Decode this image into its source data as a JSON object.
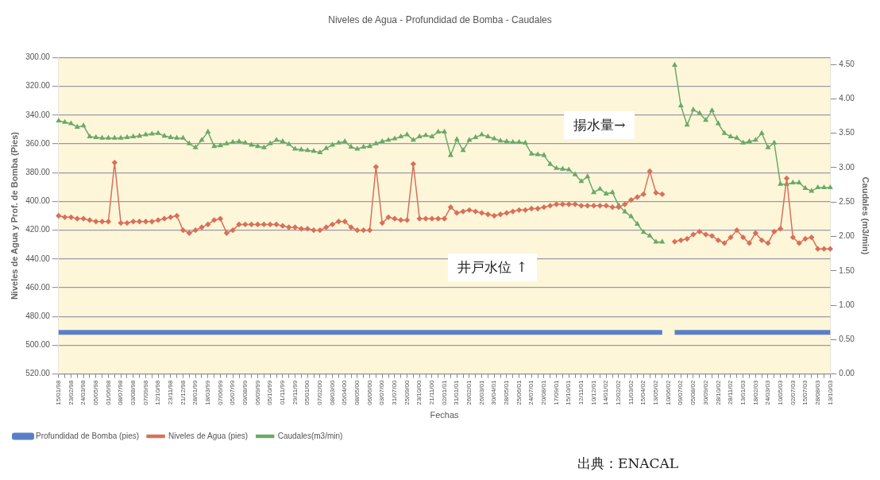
{
  "chart_data": {
    "type": "line",
    "title": "Niveles de Agua - Profundidad de Bomba - Caudales",
    "xlabel": "Fechas",
    "ylabel": "Niveles de Agua y Prof. de Bomba (Pies)",
    "y2label": "Caudales (m3/min)",
    "annotations": [
      "揚水量→",
      "井戸水位 ↑",
      "出典：ENACAL"
    ],
    "categories": [
      "15/01/98",
      null,
      "23/02/98",
      null,
      "24/03/98",
      null,
      "05/05/98",
      null,
      "01/06/98",
      null,
      "08/07/98",
      null,
      "03/08/98",
      null,
      "07/09/98",
      null,
      "12/10/98",
      null,
      "23/11/98",
      null,
      "21/12/98",
      null,
      "28/01/99",
      null,
      "18/03/99",
      null,
      "07/06/99",
      null,
      "05/07/99",
      null,
      "09/08/99",
      null,
      "06/09/99",
      null,
      "05/10/99",
      null,
      "01/11/99",
      null,
      "29/11/99",
      null,
      "05/01/00",
      null,
      "07/02/00",
      null,
      "08/03/00",
      null,
      "05/04/00",
      null,
      "08/05/00",
      null,
      "06/06/00",
      null,
      "03/07/00",
      null,
      "31/07/00",
      null,
      "25/09/00",
      null,
      "23/10/00",
      null,
      "21/11/00",
      null,
      "02/01/01",
      null,
      "31/01/01",
      null,
      "26/02/01",
      null,
      "26/03/01",
      null,
      "30/04/01",
      null,
      "28/05/01",
      null,
      "25/06/01",
      null,
      "24/07/01",
      null,
      "20/08/01",
      null,
      "17/09/01",
      null,
      "15/10/01",
      null,
      "12/11/01",
      null,
      "10/12/01",
      null,
      "14/01/02",
      null,
      "12/02/02",
      null,
      "11/03/02",
      null,
      "15/04/02",
      null,
      "13/05/02",
      null,
      "10/06/02",
      null,
      "09/07/02",
      null,
      "05/08/02",
      null,
      "30/09/02",
      null,
      "28/10/02",
      null,
      "28/11/02",
      null,
      "13/01/03",
      null,
      "18/02/03",
      null,
      "24/03/03",
      null,
      "10/05/03",
      null,
      "02/07/03",
      null,
      "15/07/03",
      null,
      "28/08/03",
      null,
      "13/10/03"
    ],
    "series": [
      {
        "name": "Profundidad de Bomba (pies)",
        "color": "#5b7fc7",
        "marker": "none",
        "values": [
          491,
          491,
          491,
          491,
          491,
          491,
          491,
          491,
          491,
          491,
          491,
          491,
          491,
          491,
          491,
          491,
          491,
          491,
          491,
          491,
          491,
          491,
          491,
          491,
          491,
          491,
          491,
          491,
          491,
          491,
          491,
          491,
          491,
          491,
          491,
          491,
          491,
          491,
          491,
          491,
          491,
          491,
          491,
          491,
          491,
          491,
          491,
          491,
          491,
          491,
          491,
          491,
          491,
          491,
          491,
          491,
          491,
          491,
          491,
          491,
          491,
          491,
          491,
          491,
          491,
          491,
          491,
          491,
          491,
          491,
          491,
          491,
          491,
          491,
          491,
          491,
          491,
          491,
          491,
          491,
          491,
          491,
          491,
          491,
          491,
          491,
          491,
          491,
          491,
          491,
          491,
          491,
          491,
          491,
          491,
          491,
          491,
          491,
          null,
          491,
          491,
          491,
          491,
          491,
          491,
          491,
          491,
          491,
          491,
          491,
          491,
          491,
          491,
          491,
          491,
          491,
          491,
          491,
          491,
          491,
          491,
          491,
          491,
          491,
          491
        ]
      },
      {
        "name": "Niveles de Agua (pies)",
        "color": "#d9705a",
        "marker": "diamond",
        "values": [
          410,
          411,
          411,
          412,
          412,
          413,
          414,
          414,
          414,
          373,
          415,
          415,
          414,
          414,
          414,
          414,
          413,
          412,
          411,
          410,
          420,
          422,
          420,
          418,
          416,
          413,
          412,
          422,
          420,
          416,
          416,
          416,
          416,
          416,
          416,
          416,
          417,
          418,
          418,
          419,
          419,
          420,
          420,
          418,
          416,
          414,
          414,
          418,
          420,
          420,
          420,
          376,
          415,
          411,
          412,
          413,
          413,
          374,
          412,
          412,
          412,
          412,
          412,
          404,
          408,
          407,
          406,
          407,
          408,
          409,
          410,
          409,
          408,
          407,
          406,
          406,
          405,
          405,
          404,
          403,
          402,
          402,
          402,
          402,
          403,
          403,
          403,
          403,
          403,
          404,
          404,
          402,
          399,
          397,
          395,
          379,
          394,
          395,
          null,
          428,
          427,
          426,
          423,
          421,
          423,
          424,
          427,
          429,
          425,
          420,
          425,
          429,
          422,
          427,
          429,
          421,
          419,
          384,
          425,
          429,
          426,
          425,
          433,
          433,
          433
        ]
      },
      {
        "name": "Caudales(m3/min)",
        "color": "#6aaa6a",
        "marker": "triangle",
        "axis": "y2",
        "values": [
          3.68,
          3.66,
          3.64,
          3.59,
          3.61,
          3.45,
          3.44,
          3.43,
          3.43,
          3.43,
          3.43,
          3.44,
          3.45,
          3.46,
          3.48,
          3.49,
          3.5,
          3.46,
          3.44,
          3.43,
          3.43,
          3.35,
          3.29,
          3.4,
          3.52,
          3.31,
          3.32,
          3.35,
          3.37,
          3.38,
          3.36,
          3.33,
          3.31,
          3.29,
          3.35,
          3.4,
          3.38,
          3.34,
          3.27,
          3.26,
          3.25,
          3.24,
          3.22,
          3.28,
          3.33,
          3.36,
          3.38,
          3.3,
          3.27,
          3.3,
          3.31,
          3.35,
          3.38,
          3.4,
          3.42,
          3.45,
          3.48,
          3.4,
          3.45,
          3.47,
          3.45,
          3.52,
          3.52,
          3.18,
          3.41,
          3.25,
          3.4,
          3.44,
          3.48,
          3.45,
          3.42,
          3.39,
          3.38,
          3.37,
          3.37,
          3.36,
          3.2,
          3.19,
          3.18,
          3.05,
          2.99,
          2.98,
          2.97,
          2.9,
          2.8,
          2.87,
          2.64,
          2.69,
          2.62,
          2.64,
          2.45,
          2.36,
          2.29,
          2.18,
          2.06,
          2.01,
          1.92,
          1.92,
          null,
          4.49,
          3.9,
          3.62,
          3.84,
          3.79,
          3.69,
          3.83,
          3.64,
          3.5,
          3.45,
          3.43,
          3.36,
          3.38,
          3.4,
          3.5,
          3.29,
          3.36,
          2.76,
          2.76,
          2.78,
          2.78,
          2.7,
          2.66,
          2.71,
          2.71,
          2.71
        ]
      }
    ],
    "ylim": [
      520,
      300
    ],
    "yticks": [
      {
        "value": 300,
        "label": "300.00"
      },
      {
        "value": 320,
        "label": "320.00"
      },
      {
        "value": 340,
        "label": "340.00"
      },
      {
        "value": 360,
        "label": "360.00"
      },
      {
        "value": 380,
        "label": "380.00"
      },
      {
        "value": 400,
        "label": "400.00"
      },
      {
        "value": 420,
        "label": "420.00"
      },
      {
        "value": 440,
        "label": "440.00"
      },
      {
        "value": 460,
        "label": "460.00"
      },
      {
        "value": 480,
        "label": "480.00"
      },
      {
        "value": 500,
        "label": "500.00"
      },
      {
        "value": 520,
        "label": "520.00"
      }
    ],
    "y2lim": [
      0,
      4.6
    ],
    "y2ticks": [
      {
        "value": 0,
        "label": "0.00"
      },
      {
        "value": 0.5,
        "label": "0.50"
      },
      {
        "value": 1,
        "label": "1.00"
      },
      {
        "value": 1.5,
        "label": "1.50"
      },
      {
        "value": 2,
        "label": "2.00"
      },
      {
        "value": 2.5,
        "label": "2.50"
      },
      {
        "value": 3,
        "label": "3.00"
      },
      {
        "value": 3.5,
        "label": "3.50"
      },
      {
        "value": 4,
        "label": "4.00"
      },
      {
        "value": 4.5,
        "label": "4.50"
      }
    ],
    "grid": "y",
    "legend": "bottom left",
    "line_style": "solid"
  }
}
